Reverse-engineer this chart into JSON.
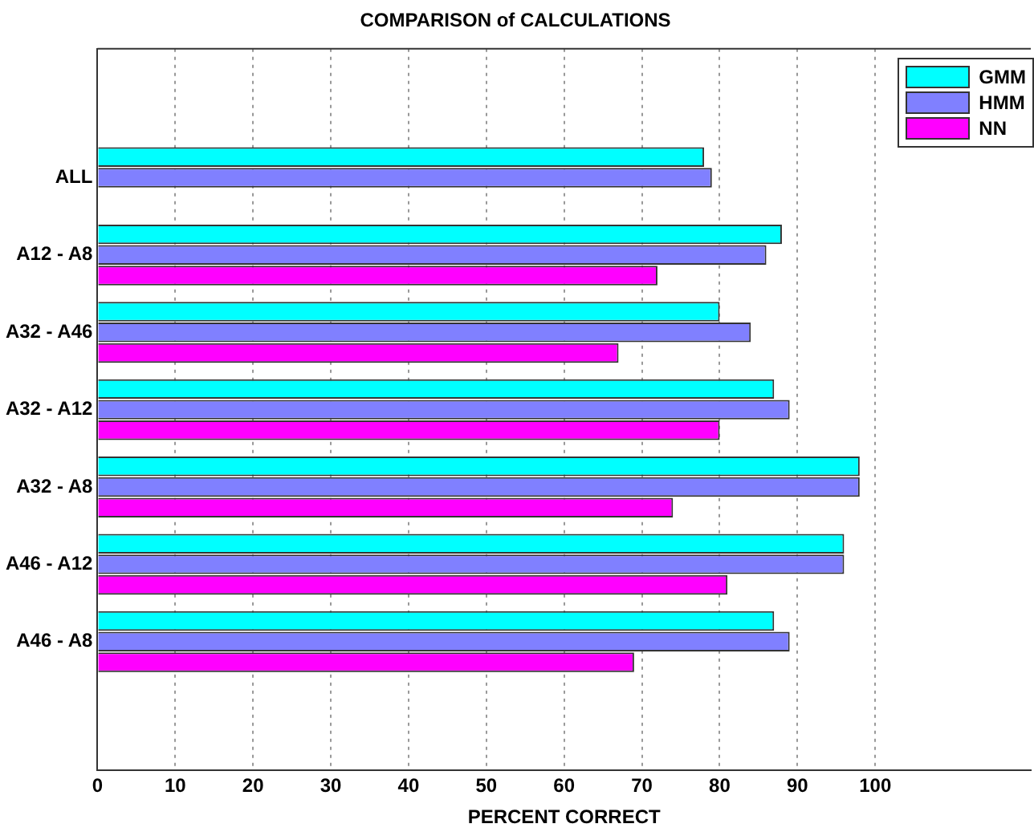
{
  "chart_data": {
    "type": "bar",
    "orientation": "horizontal",
    "title": "COMPARISON of CALCULATIONS",
    "xlabel": "PERCENT CORRECT",
    "categories": [
      "ALL",
      "A12 - A8",
      "A32 - A46",
      "A32 - A12",
      "A32 - A8",
      "A46 - A12",
      "A46 - A8"
    ],
    "series": [
      {
        "name": "GMM",
        "color": "#00ffff",
        "values": [
          78,
          88,
          80,
          87,
          98,
          96,
          87
        ]
      },
      {
        "name": "HMM",
        "color": "#8080ff",
        "values": [
          79,
          86,
          84,
          89,
          98,
          96,
          89
        ]
      },
      {
        "name": "NN",
        "color": "#ff00ff",
        "values": [
          null,
          72,
          67,
          80,
          74,
          81,
          69
        ]
      }
    ],
    "xlim": [
      0,
      120
    ],
    "xticks": [
      0,
      10,
      20,
      30,
      40,
      50,
      60,
      70,
      80,
      90,
      100
    ],
    "grid": "x",
    "legend": "top right"
  }
}
